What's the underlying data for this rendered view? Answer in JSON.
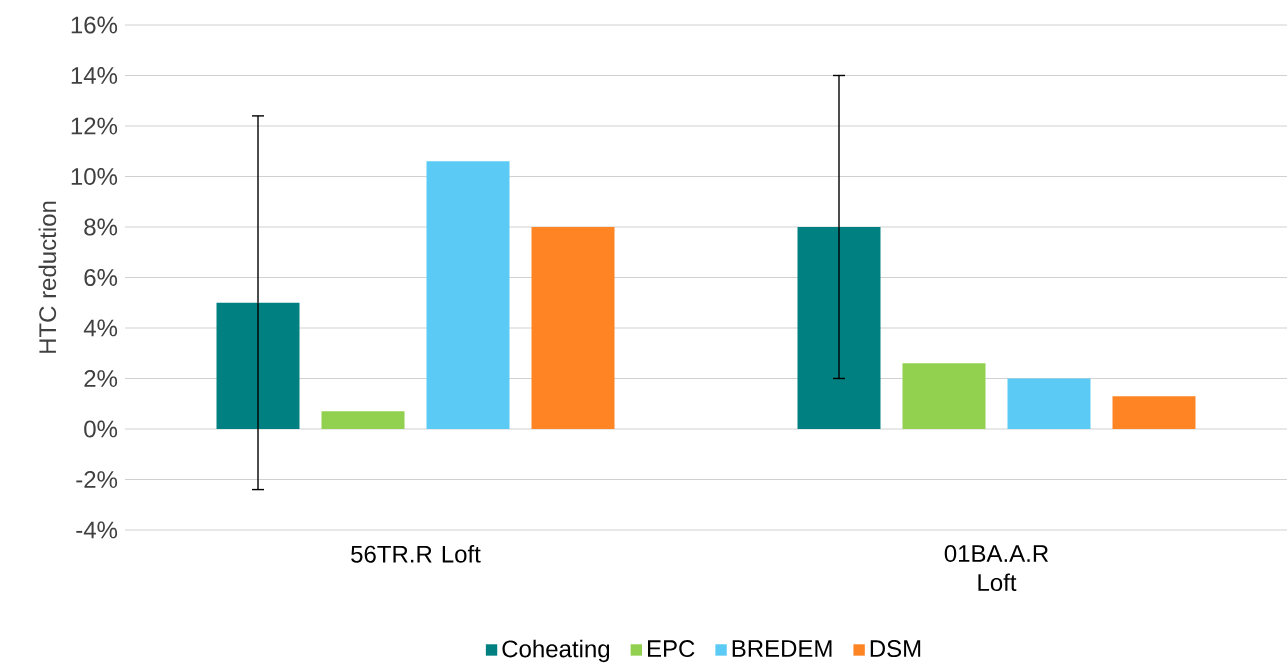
{
  "chart_data": {
    "type": "bar",
    "ylabel": "HTC reduction",
    "categories": [
      "56TR.R Loft",
      "01BA.A.R Loft"
    ],
    "series": [
      {
        "name": "Coheating",
        "color": "#008080",
        "values": [
          5.0,
          8.0
        ],
        "errors": [
          7.4,
          6.0
        ]
      },
      {
        "name": "EPC",
        "color": "#92d050",
        "values": [
          0.7,
          2.6
        ]
      },
      {
        "name": "BREDEM",
        "color": "#5bcbf5",
        "values": [
          10.6,
          2.0
        ]
      },
      {
        "name": "DSM",
        "color": "#ff8424",
        "values": [
          8.0,
          1.3
        ]
      }
    ],
    "ylim": [
      -4,
      16
    ],
    "yticks": [
      {
        "value": -4,
        "label": "-4%"
      },
      {
        "value": -2,
        "label": "-2%"
      },
      {
        "value": 0,
        "label": "0%"
      },
      {
        "value": 2,
        "label": "2%"
      },
      {
        "value": 4,
        "label": "4%"
      },
      {
        "value": 6,
        "label": "6%"
      },
      {
        "value": 8,
        "label": "8%"
      },
      {
        "value": 10,
        "label": "10%"
      },
      {
        "value": 12,
        "label": "12%"
      },
      {
        "value": 14,
        "label": "14%"
      },
      {
        "value": 16,
        "label": "16%"
      }
    ],
    "grid": "y",
    "legend": "bottom"
  }
}
